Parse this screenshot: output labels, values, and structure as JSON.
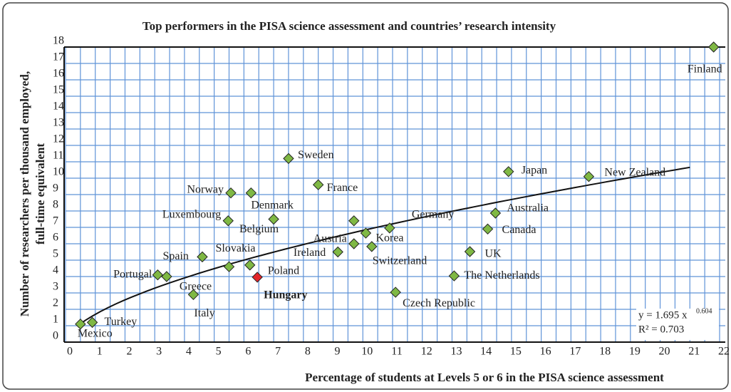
{
  "chart_data": {
    "type": "scatter",
    "title": "Top performers in the PISA science assessment and countries’ research intensity",
    "x_label": "Percentage of students at Levels 5 or 6 in the PISA science assessment",
    "y_label": [
      "Number of researchers per thousand employed,",
      "full-time equivalent"
    ],
    "labels": [
      "Mexico",
      "Turkey",
      "Portugal",
      "Greece",
      "Italy",
      "Spain",
      "Slovakia",
      "Poland",
      "Hungary",
      "Luxembourg",
      "Norway",
      "Denmark",
      "Belgium",
      "Sweden",
      "France",
      "Ireland",
      null,
      "Austria",
      "Korea",
      "Switzerland",
      "Germany",
      "Czech Republic",
      "The Netherlands",
      "UK",
      "Canada",
      "Australia",
      "Japan",
      "New Zealand",
      "Finland"
    ],
    "x": [
      0.5,
      0.9,
      3.1,
      3.4,
      4.3,
      4.6,
      5.5,
      6.2,
      6.45,
      5.47,
      5.56,
      6.24,
      7.0,
      7.5,
      8.5,
      9.16,
      9.7,
      9.7,
      10.1,
      10.3,
      10.9,
      11.1,
      13.07,
      13.6,
      14.2,
      14.46,
      14.9,
      17.6,
      21.8
    ],
    "y": [
      1.1,
      1.2,
      4.1,
      4.0,
      2.9,
      5.2,
      4.6,
      4.7,
      3.96,
      7.4,
      9.1,
      9.1,
      7.5,
      11.2,
      9.6,
      5.5,
      7.4,
      6.0,
      6.65,
      5.83,
      6.96,
      3.04,
      4.04,
      5.52,
      6.9,
      7.87,
      10.4,
      10.1,
      18.0
    ],
    "colors": [
      "#7fb844",
      "#7fb844",
      "#7fb844",
      "#7fb844",
      "#7fb844",
      "#7fb844",
      "#7fb844",
      "#7fb844",
      "#e3262b",
      "#7fb844",
      "#7fb844",
      "#7fb844",
      "#7fb844",
      "#7fb844",
      "#7fb844",
      "#7fb844",
      "#7fb844",
      "#7fb844",
      "#7fb844",
      "#7fb844",
      "#7fb844",
      "#7fb844",
      "#7fb844",
      "#7fb844",
      "#7fb844",
      "#7fb844",
      "#7fb844",
      "#7fb844",
      "#7fb844"
    ],
    "highlight_index": 8,
    "trendline": {
      "a": 1.695,
      "b": 0.604,
      "x_from": 0.4,
      "x_to": 21
    },
    "equation": "y = 1.695 x",
    "r2_label": "R² = 0.703",
    "xlim": [
      0,
      22
    ],
    "ylim": [
      0,
      18
    ],
    "xticks": [
      0,
      1,
      2,
      3,
      4,
      5,
      6,
      7,
      8,
      9,
      10,
      11,
      12,
      13,
      14,
      15,
      16,
      17,
      18,
      19,
      20,
      21,
      22
    ],
    "yticks": [
      0,
      1,
      2,
      3,
      4,
      5,
      6,
      7,
      8,
      9,
      10,
      11,
      12,
      13,
      14,
      15,
      16,
      17,
      18
    ],
    "grid": true,
    "grid_color": "#5f93d8"
  }
}
